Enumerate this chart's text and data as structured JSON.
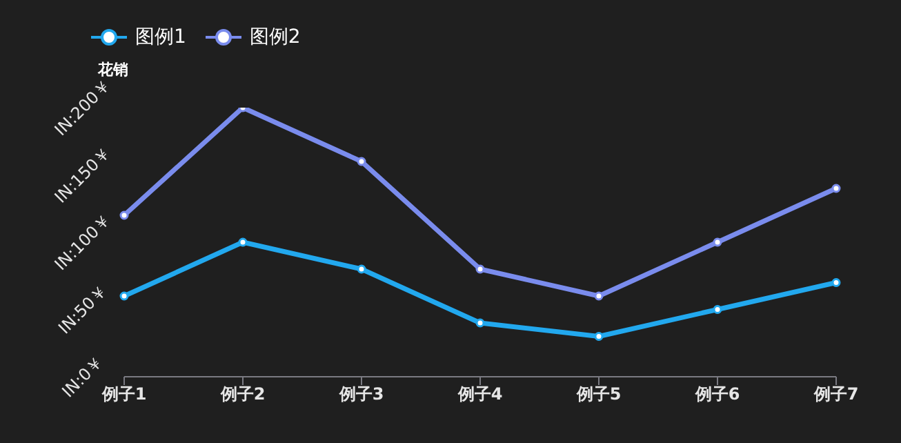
{
  "chart_data": {
    "type": "line",
    "ylabel": "花销",
    "categories": [
      "例子1",
      "例子2",
      "例子3",
      "例子4",
      "例子5",
      "例子6",
      "例子7"
    ],
    "series": [
      {
        "name": "图例1",
        "color": "#22a8ee",
        "values": [
          60,
          100,
          80,
          40,
          30,
          50,
          70
        ]
      },
      {
        "name": "图例2",
        "color": "#7a8ced",
        "values": [
          120,
          200,
          160,
          80,
          60,
          100,
          140
        ]
      }
    ],
    "ylim": [
      0,
      200
    ],
    "yticks": [
      {
        "value": 0,
        "label": "IN:0￥"
      },
      {
        "value": 50,
        "label": "IN:50￥"
      },
      {
        "value": 100,
        "label": "IN:100￥"
      },
      {
        "value": 150,
        "label": "IN:150￥"
      },
      {
        "value": 200,
        "label": "IN:200￥"
      }
    ],
    "grid": false,
    "legend": "top left",
    "marker": "circle",
    "line_style": "solid"
  }
}
